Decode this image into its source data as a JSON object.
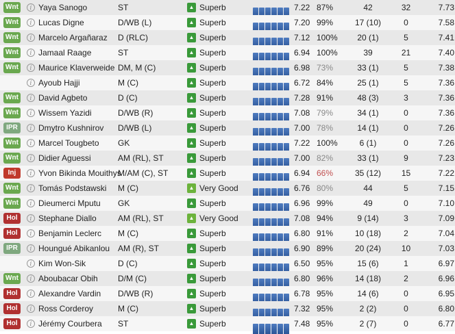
{
  "colors": {
    "Wnt": "#6aa84f",
    "IPR": "#7fa87f",
    "Inj": "#c0392b",
    "Hol": "#b03030",
    "none": "transparent"
  },
  "players": [
    {
      "status": "Wnt",
      "name": "Yaya Sanogo",
      "position": "ST",
      "rating": "Superb",
      "rtype": "superb",
      "avg": "7.22",
      "pct": "87%",
      "pctStyle": "",
      "apps": "42",
      "goals": "32",
      "rat": "7.73"
    },
    {
      "status": "Wnt",
      "name": "Lucas Digne",
      "position": "D/WB (L)",
      "rating": "Superb",
      "rtype": "superb",
      "avg": "7.20",
      "pct": "99%",
      "pctStyle": "",
      "apps": "17 (10)",
      "goals": "0",
      "rat": "7.58"
    },
    {
      "status": "Wnt",
      "name": "Marcelo Argañaraz",
      "position": "D (RLC)",
      "rating": "Superb",
      "rtype": "superb",
      "avg": "7.12",
      "pct": "100%",
      "pctStyle": "",
      "apps": "20 (1)",
      "goals": "5",
      "rat": "7.41"
    },
    {
      "status": "Wnt",
      "name": "Jamaal Raage",
      "position": "ST",
      "rating": "Superb",
      "rtype": "superb",
      "avg": "6.94",
      "pct": "100%",
      "pctStyle": "",
      "apps": "39",
      "goals": "21",
      "rat": "7.40"
    },
    {
      "status": "Wnt",
      "name": "Maurice Klaverweide",
      "position": "DM, M (C)",
      "rating": "Superb",
      "rtype": "superb",
      "avg": "6.98",
      "pct": "73%",
      "pctStyle": "dim",
      "apps": "33 (1)",
      "goals": "5",
      "rat": "7.38"
    },
    {
      "status": "",
      "name": "Ayoub Hajji",
      "position": "M (C)",
      "rating": "Superb",
      "rtype": "superb",
      "avg": "6.72",
      "pct": "84%",
      "pctStyle": "",
      "apps": "25 (1)",
      "goals": "5",
      "rat": "7.36"
    },
    {
      "status": "Wnt",
      "name": "David Agbeto",
      "position": "D (C)",
      "rating": "Superb",
      "rtype": "superb",
      "avg": "7.28",
      "pct": "91%",
      "pctStyle": "",
      "apps": "48 (3)",
      "goals": "3",
      "rat": "7.36"
    },
    {
      "status": "Wnt",
      "name": "Wissem Yazidi",
      "position": "D/WB (R)",
      "rating": "Superb",
      "rtype": "superb",
      "avg": "7.08",
      "pct": "79%",
      "pctStyle": "dim",
      "apps": "34 (1)",
      "goals": "0",
      "rat": "7.36"
    },
    {
      "status": "IPR",
      "name": "Dmytro Kushnirov",
      "position": "D/WB (L)",
      "rating": "Superb",
      "rtype": "superb",
      "avg": "7.00",
      "pct": "78%",
      "pctStyle": "dim",
      "apps": "14 (1)",
      "goals": "0",
      "rat": "7.26"
    },
    {
      "status": "Wnt",
      "name": "Marcel Tougbeto",
      "position": "GK",
      "rating": "Superb",
      "rtype": "superb",
      "avg": "7.22",
      "pct": "100%",
      "pctStyle": "",
      "apps": "6 (1)",
      "goals": "0",
      "rat": "7.26"
    },
    {
      "status": "Wnt",
      "name": "Didier Aguessi",
      "position": "AM (RL), ST",
      "rating": "Superb",
      "rtype": "superb",
      "avg": "7.00",
      "pct": "82%",
      "pctStyle": "dim",
      "apps": "33 (1)",
      "goals": "9",
      "rat": "7.23"
    },
    {
      "status": "Inj",
      "name": "Yvon Bikinda Mouithys",
      "position": "M/AM (C), ST",
      "rating": "Superb",
      "rtype": "superb",
      "avg": "6.94",
      "pct": "66%",
      "pctStyle": "red",
      "apps": "35 (12)",
      "goals": "15",
      "rat": "7.22"
    },
    {
      "status": "Wnt",
      "name": "Tomás Podstawski",
      "position": "M (C)",
      "rating": "Very Good",
      "rtype": "vgood",
      "avg": "6.76",
      "pct": "80%",
      "pctStyle": "dim",
      "apps": "44",
      "goals": "5",
      "rat": "7.15"
    },
    {
      "status": "Wnt",
      "name": "Dieumerci Mputu",
      "position": "GK",
      "rating": "Superb",
      "rtype": "superb",
      "avg": "6.96",
      "pct": "99%",
      "pctStyle": "",
      "apps": "49",
      "goals": "0",
      "rat": "7.10"
    },
    {
      "status": "Hol",
      "name": "Stephane Diallo",
      "position": "AM (RL), ST",
      "rating": "Very Good",
      "rtype": "vgood",
      "avg": "7.08",
      "pct": "94%",
      "pctStyle": "",
      "apps": "9 (14)",
      "goals": "3",
      "rat": "7.09"
    },
    {
      "status": "Hol",
      "name": "Benjamin Leclerc",
      "position": "M (C)",
      "rating": "Superb",
      "rtype": "superb",
      "avg": "6.80",
      "pct": "91%",
      "pctStyle": "",
      "apps": "10 (18)",
      "goals": "2",
      "rat": "7.04"
    },
    {
      "status": "IPR",
      "name": "Houngué Abikanlou",
      "position": "AM (R), ST",
      "rating": "Superb",
      "rtype": "superb",
      "avg": "6.90",
      "pct": "89%",
      "pctStyle": "",
      "apps": "20 (24)",
      "goals": "10",
      "rat": "7.03"
    },
    {
      "status": "",
      "name": "Kim Won-Sik",
      "position": "D (C)",
      "rating": "Superb",
      "rtype": "superb",
      "avg": "6.50",
      "pct": "95%",
      "pctStyle": "",
      "apps": "15 (6)",
      "goals": "1",
      "rat": "6.97"
    },
    {
      "status": "Wnt",
      "name": "Aboubacar Obih",
      "position": "D/M (C)",
      "rating": "Superb",
      "rtype": "superb",
      "avg": "6.80",
      "pct": "96%",
      "pctStyle": "",
      "apps": "14 (18)",
      "goals": "2",
      "rat": "6.96"
    },
    {
      "status": "Hol",
      "name": "Alexandre Vardin",
      "position": "D/WB (R)",
      "rating": "Superb",
      "rtype": "superb",
      "avg": "6.78",
      "pct": "95%",
      "pctStyle": "",
      "apps": "14 (6)",
      "goals": "0",
      "rat": "6.95"
    },
    {
      "status": "Hol",
      "name": "Ross Corderoy",
      "position": "M (C)",
      "rating": "Superb",
      "rtype": "superb",
      "avg": "7.32",
      "pct": "95%",
      "pctStyle": "",
      "apps": "2 (2)",
      "goals": "0",
      "rat": "6.80"
    },
    {
      "status": "Hol",
      "name": "Jérémy Courbera",
      "position": "ST",
      "rating": "Superb",
      "rtype": "superb",
      "avg": "7.48",
      "pct": "95%",
      "pctStyle": "",
      "apps": "2 (7)",
      "goals": "0",
      "rat": "6.77"
    }
  ]
}
